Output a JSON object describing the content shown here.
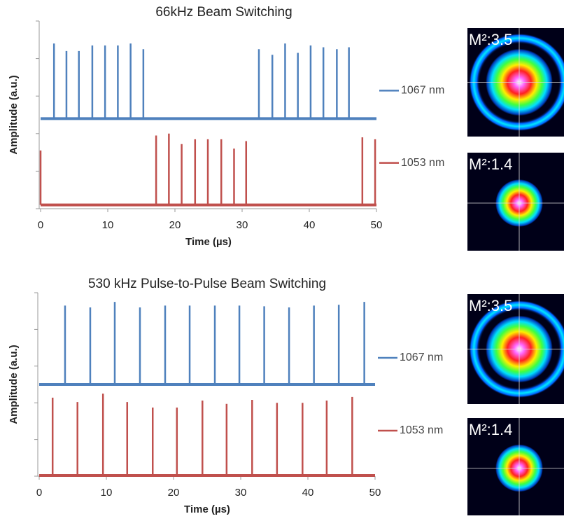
{
  "chart_data": [
    {
      "type": "stem",
      "title": "66kHz Beam Switching",
      "x_label": "Time (µs)",
      "y_label": "Amplitude (a.u.)",
      "xlim": [
        0,
        50
      ],
      "xticks": [
        0,
        10,
        20,
        30,
        40,
        50
      ],
      "ylim": [
        0,
        5
      ],
      "series": [
        {
          "name": "1067 nm",
          "color": "#4f81bd",
          "baseline": 2.4,
          "x": [
            2.0,
            3.85,
            5.7,
            7.7,
            9.6,
            11.5,
            13.4,
            15.3,
            32.5,
            34.5,
            36.4,
            38.3,
            40.2,
            42.1,
            44.1,
            45.9
          ],
          "values": [
            4.4,
            4.2,
            4.2,
            4.35,
            4.35,
            4.35,
            4.4,
            4.25,
            4.25,
            4.1,
            4.4,
            4.15,
            4.35,
            4.3,
            4.25,
            4.3
          ]
        },
        {
          "name": "1053 nm",
          "color": "#c0504d",
          "baseline": 0.1,
          "x": [
            0.0,
            17.2,
            19.1,
            21.0,
            23.0,
            24.9,
            26.9,
            28.8,
            30.6,
            47.9,
            49.8
          ],
          "values": [
            1.55,
            1.95,
            2.0,
            1.72,
            1.85,
            1.85,
            1.85,
            1.6,
            1.8,
            1.9,
            1.85
          ]
        }
      ]
    },
    {
      "type": "stem",
      "title": "530 kHz Pulse-to-Pulse Beam Switching",
      "x_label": "Time (µs)",
      "y_label": "Amplitude (a.u.)",
      "xlim": [
        0,
        50
      ],
      "xticks": [
        0,
        10,
        20,
        30,
        40,
        50
      ],
      "ylim": [
        0,
        5
      ],
      "series": [
        {
          "name": "1067 nm",
          "color": "#4f81bd",
          "baseline": 2.5,
          "x": [
            3.85,
            7.6,
            11.25,
            15.0,
            18.75,
            22.4,
            26.15,
            29.8,
            33.5,
            37.2,
            40.9,
            44.6,
            48.4
          ],
          "values": [
            4.65,
            4.6,
            4.75,
            4.6,
            4.65,
            4.65,
            4.65,
            4.65,
            4.63,
            4.6,
            4.65,
            4.67,
            4.75
          ]
        },
        {
          "name": "1053 nm",
          "color": "#c0504d",
          "baseline": 0.02,
          "x": [
            2.0,
            5.7,
            9.5,
            13.1,
            16.9,
            20.5,
            24.3,
            27.9,
            31.7,
            35.4,
            39.2,
            42.8,
            46.6
          ],
          "values": [
            2.14,
            2.02,
            2.25,
            2.02,
            1.87,
            1.87,
            2.06,
            1.97,
            2.08,
            2.0,
            2.0,
            2.06,
            2.16
          ]
        }
      ]
    }
  ],
  "beam_profiles": [
    {
      "label": "M²:3.5"
    },
    {
      "label": "M²:1.4"
    },
    {
      "label": "M²:3.5"
    },
    {
      "label": "M²:1.4"
    }
  ]
}
